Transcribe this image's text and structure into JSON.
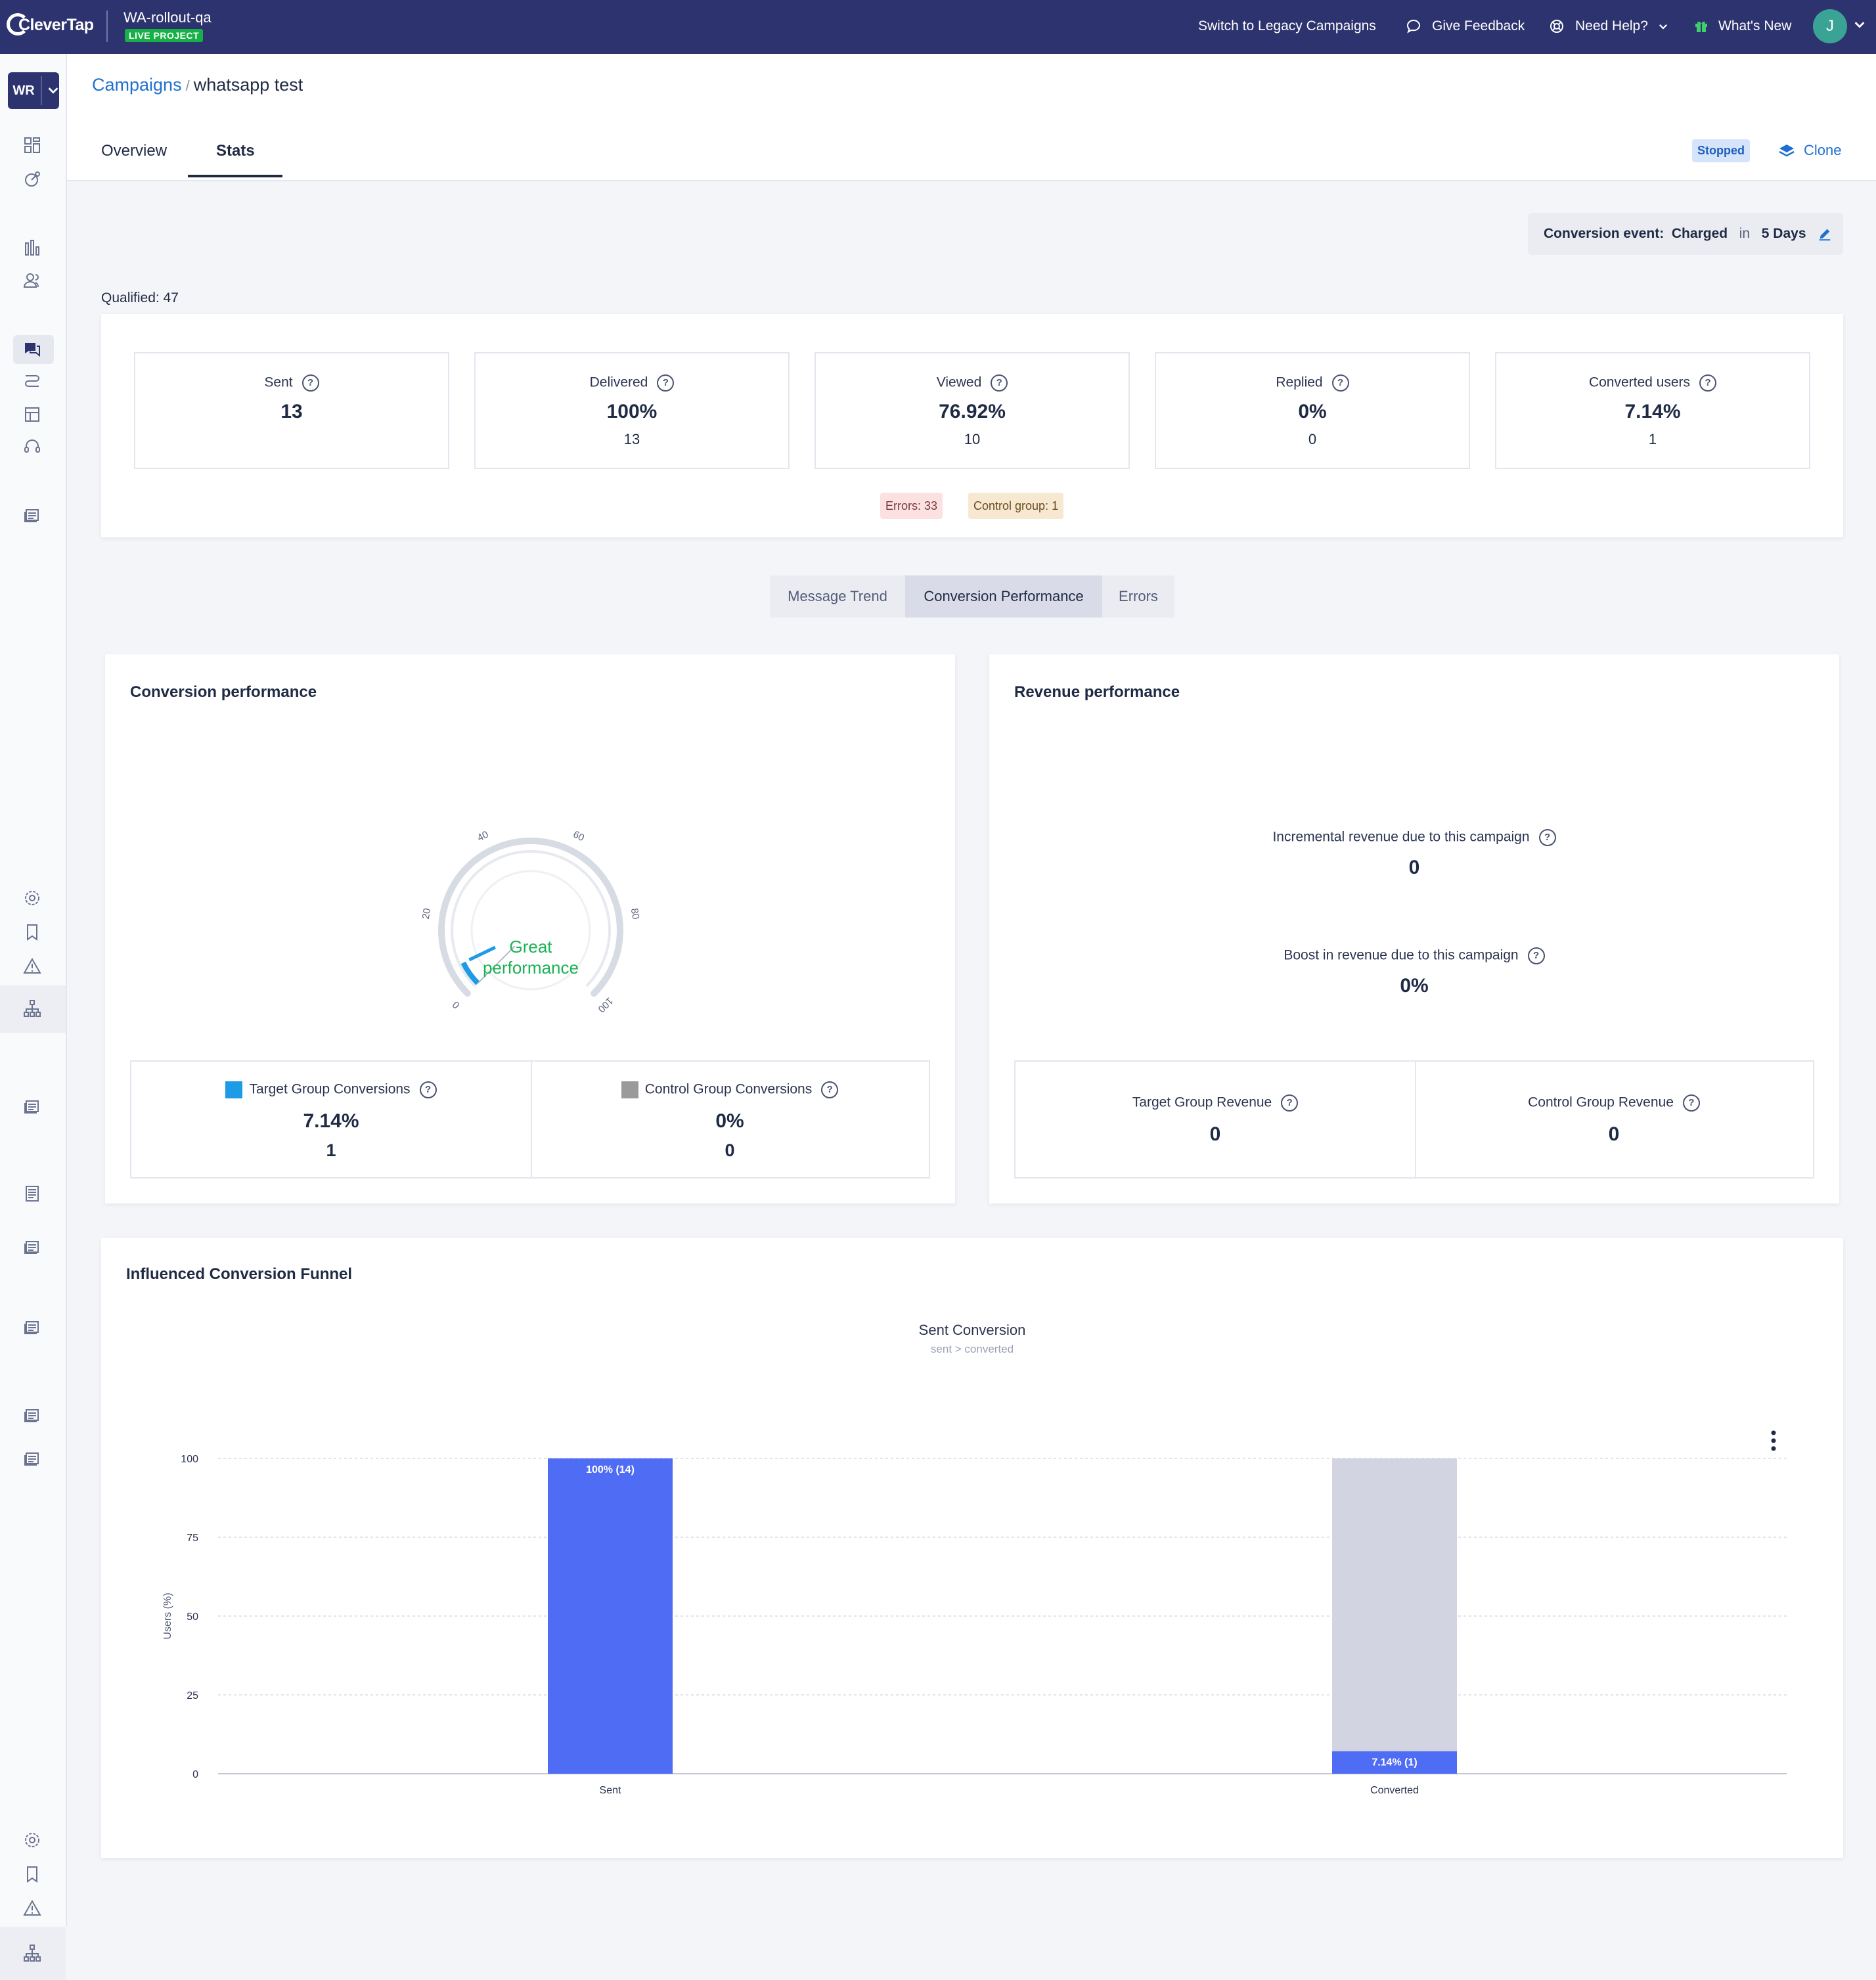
{
  "topbar": {
    "brand": "CleverTap",
    "project_name": "WA-rollout-qa",
    "project_badge": "LIVE PROJECT",
    "links": {
      "legacy": "Switch to Legacy Campaigns",
      "feedback": "Give Feedback",
      "help": "Need Help?",
      "whats_new": "What's New"
    },
    "avatar_initial": "J",
    "icons": [
      "chat-bubble-icon",
      "lifebuoy-icon",
      "chevron-down-icon",
      "gift-icon"
    ]
  },
  "sidebar": {
    "workspace_initials": "WR",
    "icons": [
      "dashboard-icon",
      "analytics-icon",
      "bar-chart-icon",
      "users-icon",
      "campaigns-icon",
      "journeys-icon",
      "catalog-icon",
      "support-icon",
      "reports-icon",
      "settings-icon",
      "bookmark-icon",
      "alert-icon",
      "hierarchy-icon"
    ]
  },
  "header": {
    "breadcrumb_link": "Campaigns",
    "breadcrumb_sep": "/",
    "breadcrumb_current": "whatsapp test",
    "tabs": [
      "Overview",
      "Stats"
    ],
    "active_tab": "Stats",
    "status": "Stopped",
    "clone_label": "Clone"
  },
  "conversion_event": {
    "label": "Conversion event:",
    "event": "Charged",
    "connector": "in",
    "window": "5 Days"
  },
  "qualified": "Qualified: 47",
  "stats": [
    {
      "label": "Sent",
      "value": "13",
      "sub": ""
    },
    {
      "label": "Delivered",
      "value": "100%",
      "sub": "13"
    },
    {
      "label": "Viewed",
      "value": "76.92%",
      "sub": "10"
    },
    {
      "label": "Replied",
      "value": "0%",
      "sub": "0"
    },
    {
      "label": "Converted users",
      "value": "7.14%",
      "sub": "1"
    }
  ],
  "chips": {
    "errors": "Errors: 33",
    "control": "Control group: 1"
  },
  "view_tabs": [
    "Message Trend",
    "Conversion Performance",
    "Errors"
  ],
  "active_view_tab": "Conversion Performance",
  "conversion_panel": {
    "title": "Conversion performance",
    "gauge": {
      "value": 7.14,
      "min": 0,
      "max": 100,
      "ticks": [
        "0",
        "20",
        "40",
        "60",
        "80",
        "100"
      ],
      "label_line1": "Great",
      "label_line2": "performance",
      "label_color": "#1bb254",
      "fill_color": "#1d9be6"
    },
    "target": {
      "label": "Target Group Conversions",
      "value": "7.14%",
      "count": "1",
      "color": "#1d9be6"
    },
    "control": {
      "label": "Control Group Conversions",
      "value": "0%",
      "count": "0",
      "color": "#9a9a9a"
    }
  },
  "revenue_panel": {
    "title": "Revenue performance",
    "incremental": {
      "label": "Incremental revenue due to this campaign",
      "value": "0"
    },
    "boost": {
      "label": "Boost in revenue due to this campaign",
      "value": "0%"
    },
    "target": {
      "label": "Target Group Revenue",
      "value": "0"
    },
    "control": {
      "label": "Control Group Revenue",
      "value": "0"
    }
  },
  "funnel": {
    "title": "Influenced Conversion Funnel",
    "chart_data": {
      "type": "bar",
      "title": "Sent Conversion",
      "subtitle": "sent > converted",
      "categories": [
        "Sent",
        "Converted"
      ],
      "values": [
        100,
        7.14
      ],
      "data_labels": [
        "100% (14)",
        "7.14% (1)"
      ],
      "remainder_color": "#d3d4e2",
      "bar_color": "#4f6cf5",
      "ylabel": "Users (%)",
      "ylim": [
        0,
        100
      ],
      "yticks": [
        0,
        25,
        50,
        75,
        100
      ],
      "grid": true
    }
  }
}
